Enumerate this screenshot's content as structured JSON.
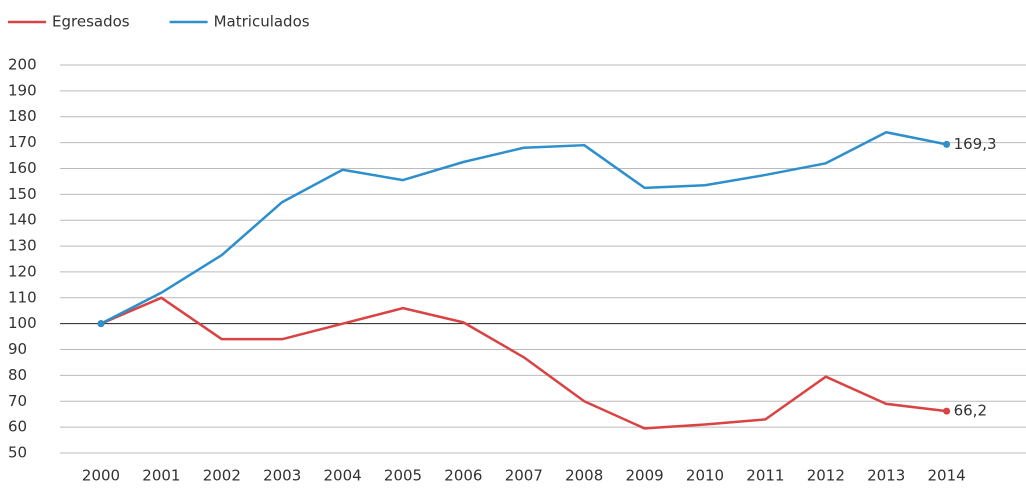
{
  "chart_data": {
    "type": "line",
    "categories": [
      "2000",
      "2001",
      "2002",
      "2003",
      "2004",
      "2005",
      "2006",
      "2007",
      "2008",
      "2009",
      "2010",
      "2011",
      "2012",
      "2013",
      "2014"
    ],
    "series": [
      {
        "name": "Egresados",
        "color": "#d94343",
        "values": [
          100,
          110,
          94,
          94,
          100,
          106,
          100.5,
          87,
          70,
          59.5,
          61,
          63,
          79.5,
          69,
          66.2
        ],
        "value_labels": [
          null,
          null,
          null,
          null,
          null,
          null,
          null,
          null,
          null,
          null,
          null,
          null,
          null,
          null,
          "66,2"
        ]
      },
      {
        "name": "Matriculados",
        "color": "#2d8fcc",
        "values": [
          100,
          112,
          126.5,
          147,
          159.5,
          155.5,
          162.5,
          168,
          169,
          152.5,
          153.5,
          157.5,
          162,
          174,
          169.3
        ],
        "value_labels": [
          null,
          null,
          null,
          null,
          null,
          null,
          null,
          null,
          null,
          null,
          null,
          null,
          null,
          null,
          "169,3"
        ]
      }
    ],
    "ylim": [
      50,
      200
    ],
    "yticks": [
      50,
      60,
      70,
      80,
      90,
      100,
      110,
      120,
      130,
      140,
      150,
      160,
      170,
      180,
      190,
      200
    ],
    "grid": true,
    "baseline": 100,
    "legend": "top-left"
  }
}
